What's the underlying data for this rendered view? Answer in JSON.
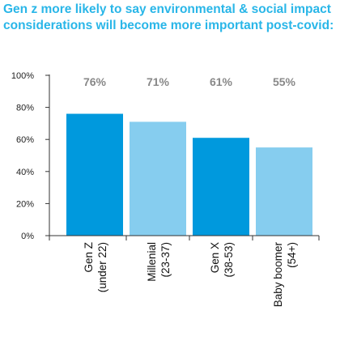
{
  "colors": {
    "title": "#29b6e8",
    "primary": "#0099dd",
    "secondary": "#86cdef"
  },
  "chart_data": {
    "type": "bar",
    "title": "Gen z more likely to say environmental & social impact considerations will become more important post-covid:",
    "categories": [
      [
        "Gen Z",
        "(under 22)"
      ],
      [
        "Millenial",
        "(23-37)"
      ],
      [
        "Gen X",
        "(38-53)"
      ],
      [
        "Baby boomer",
        "(54+)"
      ]
    ],
    "values": [
      76,
      71,
      61,
      55
    ],
    "data_labels": [
      "76%",
      "71%",
      "61%",
      "55%"
    ],
    "bar_colors": [
      "#0099dd",
      "#86cdef",
      "#0099dd",
      "#86cdef"
    ],
    "ylim": [
      0,
      100
    ],
    "yticks": [
      0,
      20,
      40,
      60,
      80,
      100
    ],
    "ytick_labels": [
      "0%",
      "20%",
      "40%",
      "60%",
      "80%",
      "100%"
    ],
    "grid": false,
    "legend": "none"
  }
}
